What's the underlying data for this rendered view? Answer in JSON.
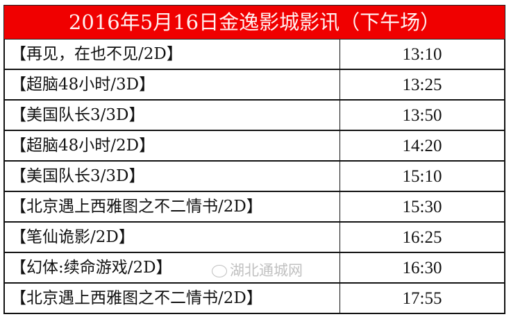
{
  "title": "2016年5月16日金逸影城影讯（下午场）",
  "colors": {
    "title_bg": "#f00000",
    "title_text": "#ffffff"
  },
  "schedule": [
    {
      "movie": "【再见，在也不见/2D】",
      "time": "13:10"
    },
    {
      "movie": "【超脑48小时/3D】",
      "time": "13:25"
    },
    {
      "movie": "【美国队长3/3D】",
      "time": "13:50"
    },
    {
      "movie": "【超脑48小时/2D】",
      "time": "14:20"
    },
    {
      "movie": "【美国队长3/3D】",
      "time": "15:10"
    },
    {
      "movie": "【北京遇上西雅图之不二情书/2D】",
      "time": "15:30"
    },
    {
      "movie": "【笔仙诡影/2D】",
      "time": "16:25"
    },
    {
      "movie": "【幻体:续命游戏/2D】",
      "time": "16:30"
    },
    {
      "movie": "【北京遇上西雅图之不二情书/2D】",
      "time": "17:55"
    }
  ],
  "watermark": {
    "icon": "wechat-icon",
    "text": "湖北通城网"
  }
}
